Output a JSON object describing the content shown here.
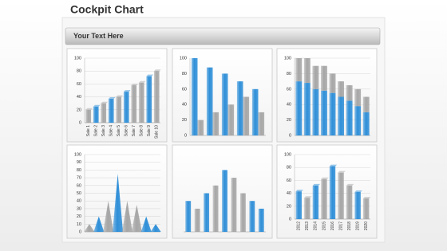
{
  "header": {
    "title": "Cockpit Chart",
    "banner": "Your Text Here"
  },
  "chart_data": [
    {
      "type": "bar",
      "style": "3d",
      "categories": [
        "Sale 1",
        "Sale 2",
        "Sale 3",
        "Sale 4",
        "Sale 5",
        "Sale 6",
        "Sale 7",
        "Sale 8",
        "Sale 9",
        "Sale 10"
      ],
      "values": [
        20,
        25,
        30,
        37,
        40,
        48,
        58,
        62,
        72,
        80
      ],
      "colors": [
        "#a6a6a6",
        "#2f8fd8",
        "#a6a6a6",
        "#2f8fd8",
        "#a6a6a6",
        "#2f8fd8",
        "#a6a6a6",
        "#a6a6a6",
        "#2f8fd8",
        "#a6a6a6"
      ],
      "ylim": [
        0,
        100
      ],
      "yticks": [
        0,
        20,
        40,
        60,
        80,
        100
      ],
      "grid": true
    },
    {
      "type": "grouped-bar",
      "categories": [
        null,
        null,
        null,
        null,
        null
      ],
      "series": [
        {
          "color": "#2f8fd8",
          "values": [
            100,
            88,
            80,
            70,
            60
          ]
        },
        {
          "color": "#a6a6a6",
          "values": [
            20,
            30,
            40,
            50,
            30
          ]
        }
      ],
      "ylim": [
        0,
        100
      ],
      "yticks": [
        0,
        20,
        40,
        60,
        80,
        100
      ],
      "grid": false
    },
    {
      "type": "stacked-bar",
      "categories": [
        null,
        null,
        null,
        null,
        null,
        null,
        null,
        null,
        null
      ],
      "series": [
        {
          "color": "#2f8fd8",
          "values": [
            70,
            68,
            60,
            58,
            55,
            50,
            45,
            38,
            30
          ]
        },
        {
          "color": "#a6a6a6",
          "values": [
            30,
            32,
            30,
            32,
            25,
            20,
            20,
            22,
            20
          ]
        }
      ],
      "ylim": [
        0,
        100
      ],
      "yticks": [
        0,
        20,
        40,
        60,
        80,
        100
      ],
      "grid": true
    },
    {
      "type": "spike",
      "categories": [
        null,
        null,
        null,
        null,
        null,
        null,
        null,
        null
      ],
      "values": [
        10,
        20,
        40,
        75,
        40,
        35,
        20,
        10
      ],
      "colors": [
        "#a6a6a6",
        "#2f8fd8",
        "#a6a6a6",
        "#2f8fd8",
        "#a6a6a6",
        "#a6a6a6",
        "#2f8fd8",
        "#2f8fd8"
      ],
      "ylim": [
        0,
        100
      ],
      "yticks": [
        0,
        10,
        20,
        30,
        40,
        50,
        60,
        70,
        80,
        90,
        100
      ],
      "grid": true
    },
    {
      "type": "bar",
      "categories": [
        null,
        null,
        null,
        null,
        null,
        null,
        null,
        null,
        null
      ],
      "values": [
        40,
        30,
        50,
        60,
        80,
        70,
        50,
        40,
        30
      ],
      "colors": [
        "#2f8fd8",
        "#a6a6a6",
        "#2f8fd8",
        "#a6a6a6",
        "#2f8fd8",
        "#a6a6a6",
        "#a6a6a6",
        "#2f8fd8",
        "#2f8fd8"
      ],
      "ylim": [
        0,
        100
      ],
      "grid": false
    },
    {
      "type": "bar",
      "style": "3d",
      "categories": [
        "2012",
        "2013",
        "2014",
        "2015",
        "2016",
        "2017",
        "2018",
        "2019",
        "2020"
      ],
      "values": [
        43,
        33,
        52,
        62,
        82,
        72,
        52,
        42,
        32
      ],
      "colors": [
        "#2f8fd8",
        "#a6a6a6",
        "#2f8fd8",
        "#a6a6a6",
        "#2f8fd8",
        "#a6a6a6",
        "#a6a6a6",
        "#2f8fd8",
        "#a6a6a6"
      ],
      "ylim": [
        0,
        100
      ],
      "yticks": [
        0,
        20,
        40,
        60,
        80,
        100
      ],
      "grid": true
    }
  ]
}
